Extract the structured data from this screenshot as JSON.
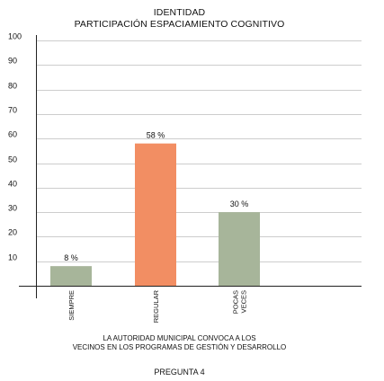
{
  "chart_data": {
    "type": "bar",
    "title": "IDENTIDAD",
    "subtitle": "PARTICIPACIÓN  ESPACIAMIENTO COGNITIVO",
    "xlabel": "LA AUTORIDAD MUNICIPAL CONVOCA A LOS VECINOS EN LOS PROGRAMAS DE GESTIÓN Y DESARROLLO",
    "xlabel_lines": [
      "LA AUTORIDAD MUNICIPAL CONVOCA A LOS",
      "VECINOS EN LOS PROGRAMAS DE GESTIÓN Y DESARROLLO"
    ],
    "footer": "PREGUNTA 4",
    "ylabel": "",
    "ylim": [
      0,
      100
    ],
    "yticks": [
      10,
      20,
      30,
      40,
      50,
      60,
      70,
      80,
      90,
      100
    ],
    "grid": true,
    "categories": [
      {
        "label": "SIEMPRE",
        "lines": [
          "SIEMPRE"
        ]
      },
      {
        "label": "REGULAR",
        "lines": [
          "REGULAR"
        ]
      },
      {
        "label": "POCAS VECES",
        "lines": [
          "POCAS",
          "VECES"
        ]
      }
    ],
    "values": [
      8,
      58,
      30
    ],
    "data_labels": [
      "8 %",
      "58 %",
      "30 %"
    ],
    "colors": [
      "#a7b59a",
      "#f28e63",
      "#a7b59a"
    ]
  }
}
